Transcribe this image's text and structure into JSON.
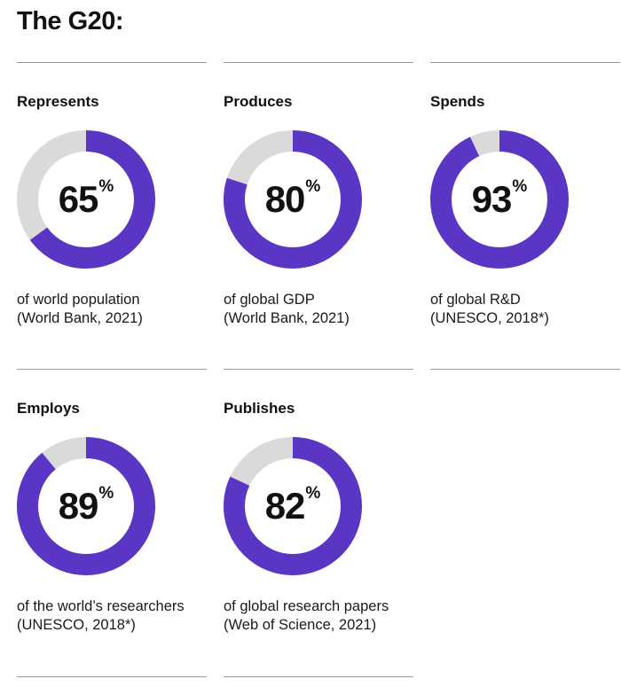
{
  "title": "The G20:",
  "colors": {
    "accent": "#5b35c4",
    "track": "#dadada",
    "text": "#111111"
  },
  "chart_data": {
    "type": "donut",
    "items": [
      {
        "label": "Represents",
        "value": 65,
        "value_text": "65",
        "unit": "%",
        "desc_line1": "of world population",
        "desc_line2": "(World Bank, 2021)"
      },
      {
        "label": "Produces",
        "value": 80,
        "value_text": "80",
        "unit": "%",
        "desc_line1": "of global GDP",
        "desc_line2": "(World Bank, 2021)"
      },
      {
        "label": "Spends",
        "value": 93,
        "value_text": "93",
        "unit": "%",
        "desc_line1": "of global R&D",
        "desc_line2": "(UNESCO, 2018*)"
      },
      {
        "label": "Employs",
        "value": 89,
        "value_text": "89",
        "unit": "%",
        "desc_line1": "of the world’s researchers",
        "desc_line2": "(UNESCO, 2018*)"
      },
      {
        "label": "Publishes",
        "value": 82,
        "value_text": "82",
        "unit": "%",
        "desc_line1": "of global research papers",
        "desc_line2": "(Web of Science, 2021)"
      }
    ]
  }
}
